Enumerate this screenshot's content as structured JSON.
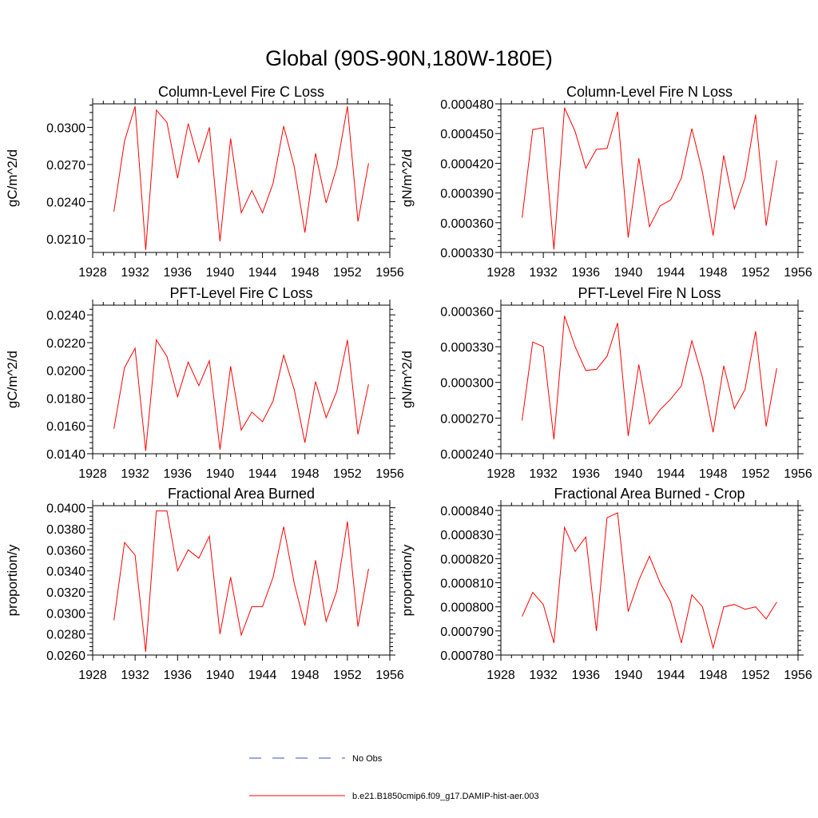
{
  "figure": {
    "title": "Global (90S-90N,180W-180E)"
  },
  "legend": {
    "entries": [
      {
        "label": "No Obs",
        "color": "#3a4fbf",
        "dashed": true
      },
      {
        "label": "b.e21.B1850cmip6.f09_g17.DAMIP-hist-aer.003",
        "color": "#ff0000",
        "dashed": false
      }
    ]
  },
  "chart_data": [
    {
      "type": "line",
      "title": "Column-Level Fire C Loss",
      "ylabel": "gC/m^2/d",
      "xlim": [
        1928,
        1956
      ],
      "xticks": [
        1928,
        1932,
        1936,
        1940,
        1944,
        1948,
        1952,
        1956
      ],
      "ylim": [
        0.0199,
        0.0319
      ],
      "yticks": [
        "0.0210",
        "0.0240",
        "0.0270",
        "0.0300"
      ],
      "x": [
        1930,
        1931,
        1932,
        1933,
        1934,
        1935,
        1936,
        1937,
        1938,
        1939,
        1940,
        1941,
        1942,
        1943,
        1944,
        1945,
        1946,
        1947,
        1948,
        1949,
        1950,
        1951,
        1952,
        1953,
        1954
      ],
      "series": [
        {
          "name": "b.e21.B1850cmip6.f09_g17.DAMIP-hist-aer.003",
          "values": [
            0.0232,
            0.0289,
            0.0317,
            0.0201,
            0.0314,
            0.0304,
            0.0259,
            0.0303,
            0.0272,
            0.03,
            0.0208,
            0.0291,
            0.0231,
            0.0249,
            0.0231,
            0.0255,
            0.0301,
            0.0268,
            0.0215,
            0.0279,
            0.0239,
            0.0268,
            0.0317,
            0.0224,
            0.0271
          ]
        }
      ]
    },
    {
      "type": "line",
      "title": "Column-Level Fire N Loss",
      "ylabel": "gN/m^2/d",
      "xlim": [
        1928,
        1956
      ],
      "xticks": [
        1928,
        1932,
        1936,
        1940,
        1944,
        1948,
        1952,
        1956
      ],
      "ylim": [
        0.00033,
        0.00048
      ],
      "yticks": [
        "0.000330",
        "0.000360",
        "0.000390",
        "0.000420",
        "0.000450",
        "0.000480"
      ],
      "x": [
        1930,
        1931,
        1932,
        1933,
        1934,
        1935,
        1936,
        1937,
        1938,
        1939,
        1940,
        1941,
        1942,
        1943,
        1944,
        1945,
        1946,
        1947,
        1948,
        1949,
        1950,
        1951,
        1952,
        1953,
        1954
      ],
      "series": [
        {
          "name": "b.e21.B1850cmip6.f09_g17.DAMIP-hist-aer.003",
          "values": [
            0.000365,
            0.000454,
            0.000456,
            0.000333,
            0.000476,
            0.000452,
            0.000415,
            0.000434,
            0.000435,
            0.000472,
            0.000345,
            0.000425,
            0.000356,
            0.000377,
            0.000383,
            0.000405,
            0.000455,
            0.000411,
            0.000347,
            0.000428,
            0.000374,
            0.000405,
            0.000469,
            0.000357,
            0.000423
          ]
        }
      ]
    },
    {
      "type": "line",
      "title": "PFT-Level Fire C Loss",
      "ylabel": "gC/m^2/d",
      "xlim": [
        1928,
        1956
      ],
      "xticks": [
        1928,
        1932,
        1936,
        1940,
        1944,
        1948,
        1952,
        1956
      ],
      "ylim": [
        0.014,
        0.0247
      ],
      "yticks": [
        "0.0140",
        "0.0160",
        "0.0180",
        "0.0200",
        "0.0220",
        "0.0240"
      ],
      "x": [
        1930,
        1931,
        1932,
        1933,
        1934,
        1935,
        1936,
        1937,
        1938,
        1939,
        1940,
        1941,
        1942,
        1943,
        1944,
        1945,
        1946,
        1947,
        1948,
        1949,
        1950,
        1951,
        1952,
        1953,
        1954
      ],
      "series": [
        {
          "name": "b.e21.B1850cmip6.f09_g17.DAMIP-hist-aer.003",
          "values": [
            0.0158,
            0.0202,
            0.0216,
            0.0142,
            0.0222,
            0.021,
            0.0181,
            0.0206,
            0.0189,
            0.0207,
            0.0143,
            0.0203,
            0.0157,
            0.017,
            0.0163,
            0.0178,
            0.0211,
            0.0186,
            0.0148,
            0.0192,
            0.0166,
            0.0185,
            0.0222,
            0.0154,
            0.019
          ]
        }
      ]
    },
    {
      "type": "line",
      "title": "PFT-Level Fire N Loss",
      "ylabel": "gN/m^2/d",
      "xlim": [
        1928,
        1956
      ],
      "xticks": [
        1928,
        1932,
        1936,
        1940,
        1944,
        1948,
        1952,
        1956
      ],
      "ylim": [
        0.00024,
        0.000365
      ],
      "yticks": [
        "0.000240",
        "0.000270",
        "0.000300",
        "0.000330",
        "0.000360"
      ],
      "x": [
        1930,
        1931,
        1932,
        1933,
        1934,
        1935,
        1936,
        1937,
        1938,
        1939,
        1940,
        1941,
        1942,
        1943,
        1944,
        1945,
        1946,
        1947,
        1948,
        1949,
        1950,
        1951,
        1952,
        1953,
        1954
      ],
      "series": [
        {
          "name": "b.e21.B1850cmip6.f09_g17.DAMIP-hist-aer.003",
          "values": [
            0.000268,
            0.000334,
            0.00033,
            0.000252,
            0.000356,
            0.00033,
            0.00031,
            0.000311,
            0.000322,
            0.00035,
            0.000255,
            0.000315,
            0.000265,
            0.000277,
            0.000286,
            0.000297,
            0.000335,
            0.000304,
            0.000258,
            0.000314,
            0.000278,
            0.000294,
            0.000343,
            0.000263,
            0.000312
          ]
        }
      ]
    },
    {
      "type": "line",
      "title": "Fractional Area Burned",
      "ylabel": "proportion/y",
      "xlim": [
        1928,
        1956
      ],
      "xticks": [
        1928,
        1932,
        1936,
        1940,
        1944,
        1948,
        1952,
        1956
      ],
      "ylim": [
        0.026,
        0.0402
      ],
      "yticks": [
        "0.0260",
        "0.0280",
        "0.0300",
        "0.0320",
        "0.0340",
        "0.0360",
        "0.0380",
        "0.0400"
      ],
      "x": [
        1930,
        1931,
        1932,
        1933,
        1934,
        1935,
        1936,
        1937,
        1938,
        1939,
        1940,
        1941,
        1942,
        1943,
        1944,
        1945,
        1946,
        1947,
        1948,
        1949,
        1950,
        1951,
        1952,
        1953,
        1954
      ],
      "series": [
        {
          "name": "b.e21.B1850cmip6.f09_g17.DAMIP-hist-aer.003",
          "values": [
            0.0293,
            0.0367,
            0.0355,
            0.0263,
            0.0397,
            0.0397,
            0.034,
            0.036,
            0.0352,
            0.0373,
            0.028,
            0.0334,
            0.0279,
            0.0306,
            0.0306,
            0.0334,
            0.0382,
            0.0328,
            0.0288,
            0.035,
            0.0292,
            0.0321,
            0.0387,
            0.0287,
            0.0342
          ]
        }
      ]
    },
    {
      "type": "line",
      "title": "Fractional Area Burned - Crop",
      "ylabel": "proportion/y",
      "xlim": [
        1928,
        1956
      ],
      "xticks": [
        1928,
        1932,
        1936,
        1940,
        1944,
        1948,
        1952,
        1956
      ],
      "ylim": [
        0.00078,
        0.000842
      ],
      "yticks": [
        "0.000780",
        "0.000790",
        "0.000800",
        "0.000810",
        "0.000820",
        "0.000830",
        "0.000840"
      ],
      "x": [
        1930,
        1931,
        1932,
        1933,
        1934,
        1935,
        1936,
        1937,
        1938,
        1939,
        1940,
        1941,
        1942,
        1943,
        1944,
        1945,
        1946,
        1947,
        1948,
        1949,
        1950,
        1951,
        1952,
        1953,
        1954
      ],
      "series": [
        {
          "name": "b.e21.B1850cmip6.f09_g17.DAMIP-hist-aer.003",
          "values": [
            0.000796,
            0.000806,
            0.000801,
            0.000785,
            0.000833,
            0.000823,
            0.000829,
            0.00079,
            0.000837,
            0.000839,
            0.000798,
            0.000811,
            0.000821,
            0.00081,
            0.000802,
            0.000785,
            0.000805,
            0.0008,
            0.000783,
            0.0008,
            0.000801,
            0.000799,
            0.0008,
            0.000795,
            0.000802
          ]
        }
      ]
    }
  ]
}
